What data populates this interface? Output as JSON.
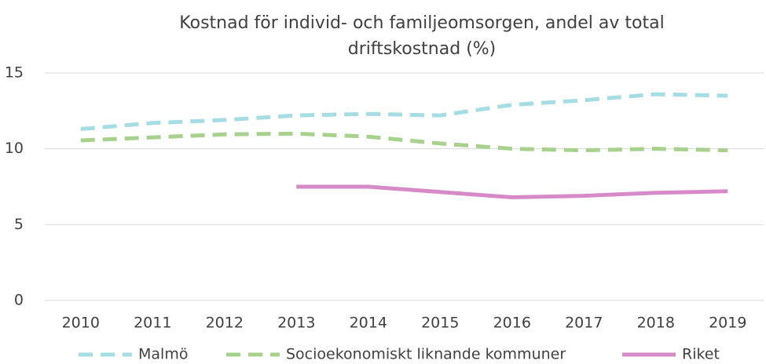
{
  "chart_data": {
    "type": "line",
    "title": [
      "Kostnad för individ- och familjeomsorgen, andel av total",
      "driftskostnad (%)"
    ],
    "categories": [
      "2010",
      "2011",
      "2012",
      "2013",
      "2014",
      "2015",
      "2016",
      "2017",
      "2018",
      "2019"
    ],
    "series": [
      {
        "name": "Malmö",
        "color": "#a6dce4",
        "style": "dashed",
        "values": [
          11.3,
          11.7,
          11.9,
          12.2,
          12.3,
          12.2,
          12.9,
          13.2,
          13.6,
          13.5
        ]
      },
      {
        "name": "Socioekonomiskt liknande kommuner",
        "color": "#a9d18e",
        "style": "dashed",
        "values": [
          10.55,
          10.75,
          10.95,
          11.0,
          10.8,
          10.35,
          10.0,
          9.9,
          10.0,
          9.9
        ]
      },
      {
        "name": "Riket",
        "color": "#d68bc8",
        "style": "solid",
        "values": [
          null,
          null,
          null,
          7.5,
          7.5,
          7.15,
          6.8,
          6.9,
          7.1,
          7.2
        ]
      }
    ],
    "ylim": [
      0,
      15
    ],
    "yticks": [
      0,
      5,
      10,
      15
    ],
    "grid": true,
    "legend": "bottom"
  }
}
